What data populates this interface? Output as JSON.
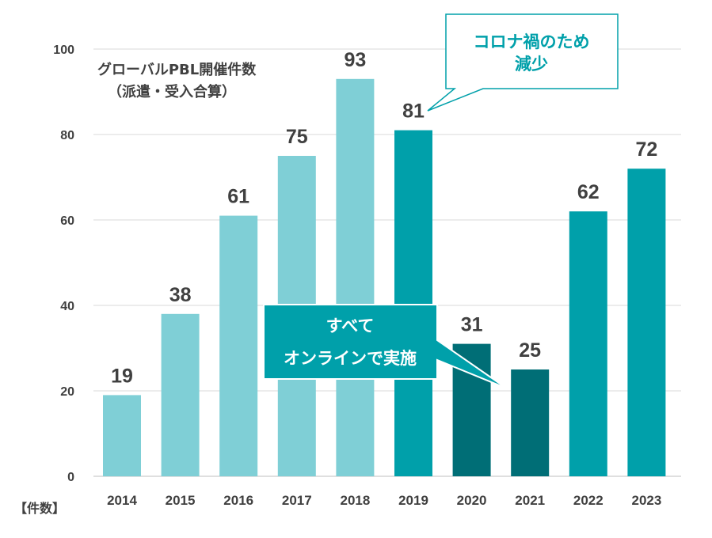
{
  "chart_data": {
    "type": "bar",
    "title": [
      "グローバルPBL開催件数",
      "（派遣・受入合算）"
    ],
    "ylabel": "【件数】",
    "xlabel": "",
    "ylim": [
      0,
      100
    ],
    "yticks": [
      0,
      20,
      40,
      60,
      80,
      100
    ],
    "grid": true,
    "categories": [
      "2014",
      "2015",
      "2016",
      "2017",
      "2018",
      "2019",
      "2020",
      "2021",
      "2022",
      "2023"
    ],
    "values": [
      19,
      38,
      61,
      75,
      93,
      81,
      31,
      25,
      62,
      72
    ],
    "bar_colors": [
      "#7FCFD6",
      "#7FCFD6",
      "#7FCFD6",
      "#7FCFD6",
      "#7FCFD6",
      "#00A0AA",
      "#006E76",
      "#006E76",
      "#00A0AA",
      "#00A0AA"
    ],
    "annotations": [
      {
        "lines": [
          "コロナ禍のため",
          "減少"
        ],
        "target": "2019",
        "text_color": "#00A0AA",
        "border_color": "#00A0AA"
      },
      {
        "lines": [
          "すべて",
          "オンラインで実施"
        ],
        "target": "2021",
        "text_color": "#ffffff",
        "fill": "#00A0AA",
        "border_color": "#ffffff"
      }
    ]
  }
}
